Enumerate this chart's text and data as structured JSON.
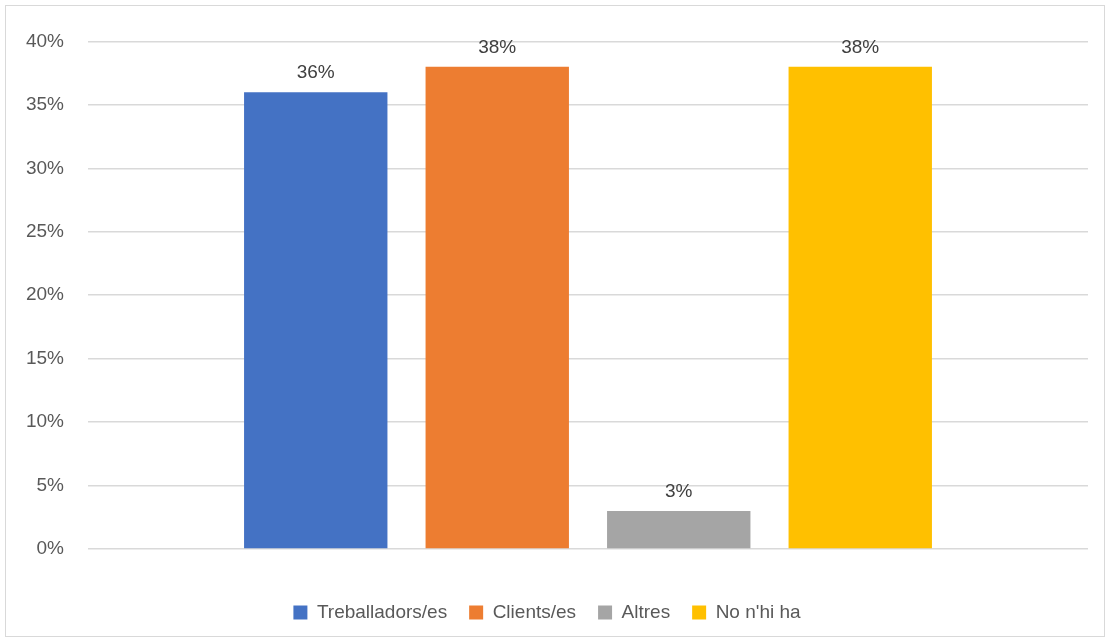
{
  "chart_data": {
    "type": "bar",
    "categories": [
      null
    ],
    "series": [
      {
        "name": "Treballadors/es",
        "color": "#4472c4",
        "values": [
          36
        ],
        "value_labels": [
          "36%"
        ]
      },
      {
        "name": "Clients/es",
        "color": "#ed7d31",
        "values": [
          38
        ],
        "value_labels": [
          "38%"
        ]
      },
      {
        "name": "Altres",
        "color": "#a5a5a5",
        "values": [
          3
        ],
        "value_labels": [
          "3%"
        ]
      },
      {
        "name": "No n'hi ha",
        "color": "#ffc000",
        "values": [
          38
        ],
        "value_labels": [
          "38%"
        ]
      }
    ],
    "ylim": [
      0,
      40
    ],
    "yticks": [
      {
        "value": 0,
        "label": "0%"
      },
      {
        "value": 5,
        "label": "5%"
      },
      {
        "value": 10,
        "label": "10%"
      },
      {
        "value": 15,
        "label": "15%"
      },
      {
        "value": 20,
        "label": "20%"
      },
      {
        "value": 25,
        "label": "25%"
      },
      {
        "value": 30,
        "label": "30%"
      },
      {
        "value": 35,
        "label": "35%"
      },
      {
        "value": 40,
        "label": "40%"
      }
    ],
    "grid": "y",
    "legend": "bottom"
  }
}
